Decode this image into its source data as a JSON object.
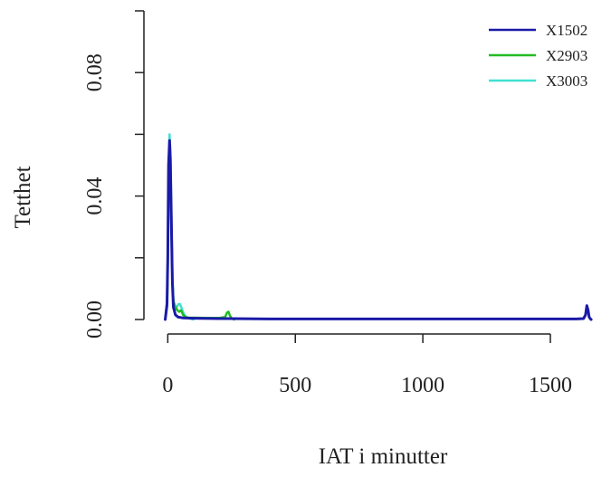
{
  "chart_data": {
    "type": "line",
    "title": "",
    "xlabel": "IAT i minutter",
    "ylabel": "Tetthet",
    "xlim": [
      -90,
      1720
    ],
    "ylim": [
      0,
      0.1
    ],
    "xticks": [
      0,
      500,
      1000,
      1500
    ],
    "yticks": [
      0.0,
      0.04,
      0.08
    ],
    "ytick_labels": [
      "0.00",
      "0.04",
      "0.08"
    ],
    "grid": false,
    "legend_position": "top-right",
    "series": [
      {
        "name": "X1502",
        "color": "#1a1aa8",
        "x": [
          -10,
          -3,
          0,
          3,
          7,
          10,
          14,
          18,
          22,
          30,
          40,
          60,
          100,
          200,
          400,
          800,
          1200,
          1600,
          1630,
          1638,
          1643,
          1648,
          1652,
          1656,
          1660
        ],
        "y": [
          0.0,
          0.005,
          0.02,
          0.05,
          0.058,
          0.052,
          0.032,
          0.012,
          0.004,
          0.0015,
          0.0008,
          0.0005,
          0.0004,
          0.0003,
          0.0002,
          0.0002,
          0.0002,
          0.0002,
          0.0003,
          0.0015,
          0.0045,
          0.003,
          0.0008,
          0.0003,
          0.0
        ]
      },
      {
        "name": "X2903",
        "color": "#22bb22",
        "x": [
          -10,
          -3,
          0,
          3,
          7,
          10,
          14,
          18,
          22,
          30,
          38,
          45,
          52,
          60,
          70,
          80,
          100,
          150,
          200,
          225,
          232,
          238,
          244,
          250,
          260
        ],
        "y": [
          0.0,
          0.004,
          0.018,
          0.045,
          0.057,
          0.05,
          0.03,
          0.013,
          0.006,
          0.004,
          0.003,
          0.0025,
          0.003,
          0.0015,
          0.0008,
          0.0006,
          0.0006,
          0.0005,
          0.0005,
          0.0008,
          0.0022,
          0.0025,
          0.0012,
          0.0004,
          0.0
        ]
      },
      {
        "name": "X3003",
        "color": "#40e0d0",
        "x": [
          -10,
          -3,
          0,
          3,
          7,
          10,
          14,
          18,
          22,
          28,
          35,
          42,
          48,
          55,
          62,
          70,
          80,
          90,
          100
        ],
        "y": [
          0.0,
          0.006,
          0.022,
          0.048,
          0.06,
          0.054,
          0.034,
          0.014,
          0.006,
          0.003,
          0.004,
          0.005,
          0.005,
          0.0035,
          0.002,
          0.001,
          0.0005,
          0.0002,
          0.0
        ]
      }
    ]
  }
}
